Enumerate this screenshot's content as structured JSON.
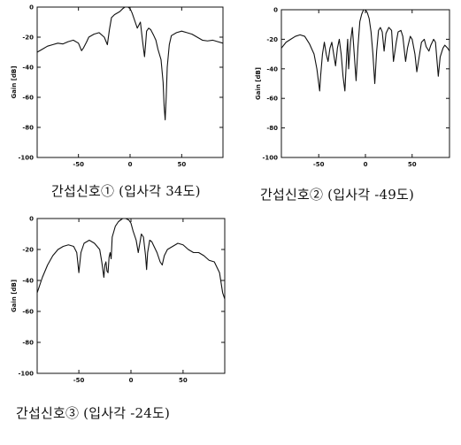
{
  "chart_data": [
    {
      "type": "line",
      "title": "",
      "xlabel": "",
      "ylabel": "Gain [dB]",
      "xlim": [
        -90,
        90
      ],
      "ylim": [
        -100,
        0
      ],
      "xticks": [
        -50,
        0,
        50
      ],
      "yticks": [
        0,
        -20,
        -40,
        -60,
        -80,
        -100
      ],
      "xtick_labels": [
        "-50",
        "0",
        "50"
      ],
      "ytick_labels": [
        "0",
        "-20",
        "-40",
        "-60",
        "-80",
        "-100"
      ],
      "grid": false,
      "caption": "간섭신호① (입사각 34도)",
      "series": [
        {
          "x": [
            -90,
            -85,
            -80,
            -75,
            -70,
            -65,
            -60,
            -55,
            -50,
            -47,
            -45,
            -42,
            -40,
            -35,
            -30,
            -25,
            -22,
            -20,
            -18,
            -15,
            -10,
            -7,
            -5,
            -2,
            0,
            2,
            5,
            7,
            10,
            12,
            14,
            15,
            16,
            18,
            20,
            23,
            25,
            27,
            30,
            32,
            33,
            34,
            35,
            36,
            38,
            40,
            45,
            50,
            55,
            60,
            65,
            70,
            75,
            80,
            85,
            90
          ],
          "y": [
            -30,
            -28,
            -26,
            -25,
            -24,
            -24.5,
            -23,
            -22,
            -24,
            -29,
            -27,
            -23,
            -20,
            -18,
            -17,
            -20,
            -25,
            -15,
            -7,
            -5,
            -3,
            -1,
            0,
            0,
            -1,
            -4,
            -10,
            -14,
            -10,
            -22,
            -33,
            -25,
            -16,
            -14,
            -15,
            -19,
            -22,
            -28,
            -35,
            -50,
            -66,
            -75,
            -60,
            -40,
            -25,
            -19,
            -17,
            -16,
            -17,
            -18,
            -20,
            -22,
            -22.5,
            -22,
            -23,
            -24
          ]
        }
      ]
    },
    {
      "type": "line",
      "title": "",
      "xlabel": "",
      "ylabel": "Gain [dB]",
      "xlim": [
        -90,
        90
      ],
      "ylim": [
        -100,
        0
      ],
      "xticks": [
        -50,
        0,
        50
      ],
      "yticks": [
        0,
        -20,
        -40,
        -60,
        -80,
        -100
      ],
      "xtick_labels": [
        "-50",
        "0",
        "50"
      ],
      "ytick_labels": [
        "0",
        "-20",
        "-40",
        "-60",
        "-80",
        "-100"
      ],
      "grid": false,
      "caption": "간섭신호② (입사각 -49도)",
      "series": [
        {
          "x": [
            -90,
            -85,
            -80,
            -75,
            -70,
            -65,
            -60,
            -55,
            -52,
            -50,
            -49,
            -48,
            -46,
            -44,
            -42,
            -40,
            -38,
            -36,
            -34,
            -32,
            -30,
            -28,
            -26,
            -24,
            -22,
            -20,
            -19,
            -18,
            -16,
            -14,
            -12,
            -10,
            -8,
            -6,
            -4,
            -2,
            0,
            2,
            4,
            6,
            8,
            10,
            12,
            14,
            16,
            18,
            20,
            22,
            25,
            28,
            30,
            33,
            35,
            38,
            40,
            43,
            45,
            48,
            50,
            53,
            55,
            58,
            60,
            63,
            65,
            68,
            70,
            73,
            75,
            78,
            80,
            83,
            85,
            88,
            90
          ],
          "y": [
            -26,
            -22,
            -20,
            -18,
            -17,
            -18,
            -23,
            -30,
            -40,
            -50,
            -55,
            -45,
            -30,
            -22,
            -30,
            -35,
            -26,
            -22,
            -30,
            -38,
            -26,
            -20,
            -30,
            -45,
            -55,
            -30,
            -20,
            -40,
            -22,
            -12,
            -30,
            -48,
            -25,
            -8,
            -3,
            0,
            0,
            -2,
            -6,
            -15,
            -30,
            -50,
            -28,
            -14,
            -12,
            -15,
            -28,
            -16,
            -12,
            -14,
            -35,
            -22,
            -15,
            -14,
            -18,
            -35,
            -26,
            -18,
            -20,
            -30,
            -42,
            -30,
            -22,
            -20,
            -25,
            -28,
            -24,
            -20,
            -22,
            -45,
            -32,
            -26,
            -24,
            -26,
            -28
          ]
        }
      ]
    },
    {
      "type": "line",
      "title": "",
      "xlabel": "",
      "ylabel": "Gain [dB]",
      "xlim": [
        -90,
        90
      ],
      "ylim": [
        -100,
        0
      ],
      "xticks": [
        -50,
        0,
        50
      ],
      "yticks": [
        0,
        -20,
        -40,
        -60,
        -80,
        -100
      ],
      "xtick_labels": [
        "-50",
        "0",
        "50"
      ],
      "ytick_labels": [
        "0",
        "-20",
        "-40",
        "-60",
        "-80",
        "-100"
      ],
      "grid": false,
      "caption": "간섭신호③ (입사각 -24도)",
      "series": [
        {
          "x": [
            -90,
            -85,
            -80,
            -75,
            -70,
            -65,
            -60,
            -55,
            -52,
            -50,
            -48,
            -45,
            -40,
            -35,
            -30,
            -28,
            -26,
            -25,
            -24,
            -23,
            -22,
            -21,
            -20,
            -19,
            -18,
            -15,
            -12,
            -10,
            -8,
            -5,
            -2,
            0,
            2,
            5,
            7,
            10,
            12,
            14,
            15,
            16,
            18,
            20,
            25,
            28,
            30,
            32,
            35,
            40,
            45,
            50,
            55,
            60,
            65,
            70,
            75,
            80,
            85,
            88,
            90
          ],
          "y": [
            -48,
            -38,
            -30,
            -24,
            -20,
            -18,
            -17,
            -18,
            -22,
            -35,
            -22,
            -16,
            -14,
            -16,
            -20,
            -28,
            -38,
            -30,
            -28,
            -34,
            -35,
            -25,
            -22,
            -26,
            -12,
            -5,
            -2,
            -1,
            0,
            0,
            -1,
            -3,
            -8,
            -14,
            -22,
            -10,
            -12,
            -24,
            -33,
            -22,
            -14,
            -15,
            -22,
            -28,
            -30,
            -24,
            -20,
            -18,
            -16,
            -17,
            -20,
            -22,
            -22,
            -24,
            -27,
            -28,
            -35,
            -48,
            -52
          ]
        }
      ]
    }
  ]
}
